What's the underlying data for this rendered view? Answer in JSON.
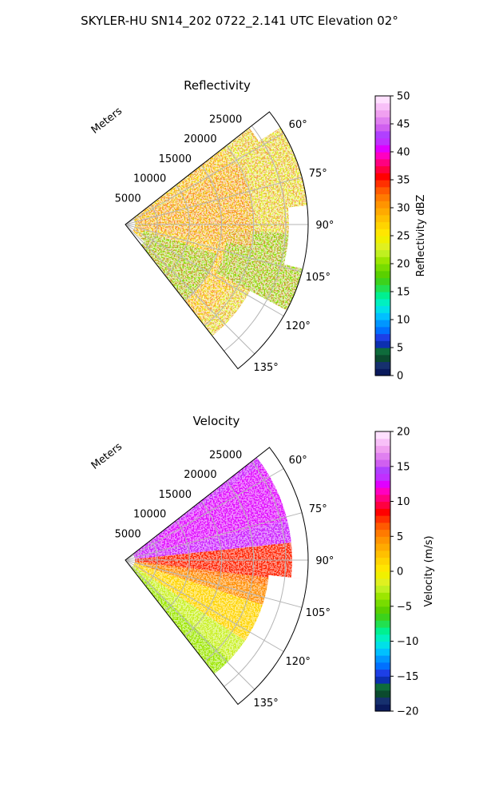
{
  "suptitle": "SKYLER-HU  SN14_202  0722_2.141 UTC Elevation 02°",
  "chart_data": [
    {
      "type": "polar-sector",
      "title": "Reflectivity",
      "range_label": "Meters",
      "range_ticks": [
        5000,
        10000,
        15000,
        20000,
        25000
      ],
      "range_tick_labels": [
        "5000",
        "10000",
        "15000",
        "20000",
        "25000"
      ],
      "range_max": 28500,
      "azimuth_range": [
        52,
        142
      ],
      "azimuth_ticks": [
        60,
        75,
        90,
        105,
        120,
        135
      ],
      "azimuth_tick_labels": [
        "60°",
        "75°",
        "90°",
        "105°",
        "120°",
        "135°"
      ],
      "colorbar": {
        "label": "Reflectivity dBZ",
        "vmin": 0,
        "vmax": 50,
        "ticks": [
          0,
          5,
          10,
          15,
          20,
          25,
          30,
          35,
          40,
          45,
          50
        ],
        "tick_labels": [
          "0",
          "5",
          "10",
          "15",
          "20",
          "25",
          "30",
          "35",
          "40",
          "45",
          "50"
        ],
        "colors": [
          "#0a1a5c",
          "#16306e",
          "#0b4a2e",
          "#0e6b3b",
          "#0c2fb0",
          "#1d3fe6",
          "#0070ff",
          "#0096ff",
          "#00c0ff",
          "#00e0e8",
          "#00f0c0",
          "#00f090",
          "#22e050",
          "#3cd21c",
          "#5ad000",
          "#78dc00",
          "#9ce600",
          "#c0f020",
          "#e0f020",
          "#f0f000",
          "#ffe600",
          "#ffd400",
          "#ffc000",
          "#ffaa00",
          "#ff9400",
          "#ff7a00",
          "#ff5a00",
          "#ff3000",
          "#ff0000",
          "#ff0040",
          "#ff0080",
          "#ff00c0",
          "#e000ff",
          "#c030ff",
          "#b040ff",
          "#d060f0",
          "#e080f0",
          "#f0a0f0",
          "#f8c0f8",
          "#ffe0ff"
        ]
      }
    },
    {
      "type": "polar-sector",
      "title": "Velocity",
      "range_label": "Meters",
      "range_ticks": [
        5000,
        10000,
        15000,
        20000,
        25000
      ],
      "range_tick_labels": [
        "5000",
        "10000",
        "15000",
        "20000",
        "25000"
      ],
      "range_max": 28500,
      "azimuth_range": [
        52,
        142
      ],
      "azimuth_ticks": [
        60,
        75,
        90,
        105,
        120,
        135
      ],
      "azimuth_tick_labels": [
        "60°",
        "75°",
        "90°",
        "105°",
        "120°",
        "135°"
      ],
      "colorbar": {
        "label": "Velocity (m/s)",
        "vmin": -20,
        "vmax": 20,
        "ticks": [
          -20,
          -15,
          -10,
          -5,
          0,
          5,
          10,
          15,
          20
        ],
        "tick_labels": [
          "−20",
          "−15",
          "−10",
          "−5",
          "0",
          "5",
          "10",
          "15",
          "20"
        ],
        "colors": [
          "#0a1a5c",
          "#16306e",
          "#0b4a2e",
          "#0e6b3b",
          "#0c2fb0",
          "#1d3fe6",
          "#0070ff",
          "#0096ff",
          "#00c0ff",
          "#00e0e8",
          "#00f0c0",
          "#00f090",
          "#22e050",
          "#3cd21c",
          "#5ad000",
          "#78dc00",
          "#9ce600",
          "#c0f020",
          "#e0f020",
          "#f0f000",
          "#ffe600",
          "#ffd400",
          "#ffc000",
          "#ffaa00",
          "#ff9400",
          "#ff7a00",
          "#ff5a00",
          "#ff3000",
          "#ff0000",
          "#ff0040",
          "#ff0080",
          "#ff00c0",
          "#e000ff",
          "#c030ff",
          "#b040ff",
          "#d060f0",
          "#e080f0",
          "#f0a0f0",
          "#f8c0f8",
          "#ffe0ff"
        ]
      }
    }
  ]
}
